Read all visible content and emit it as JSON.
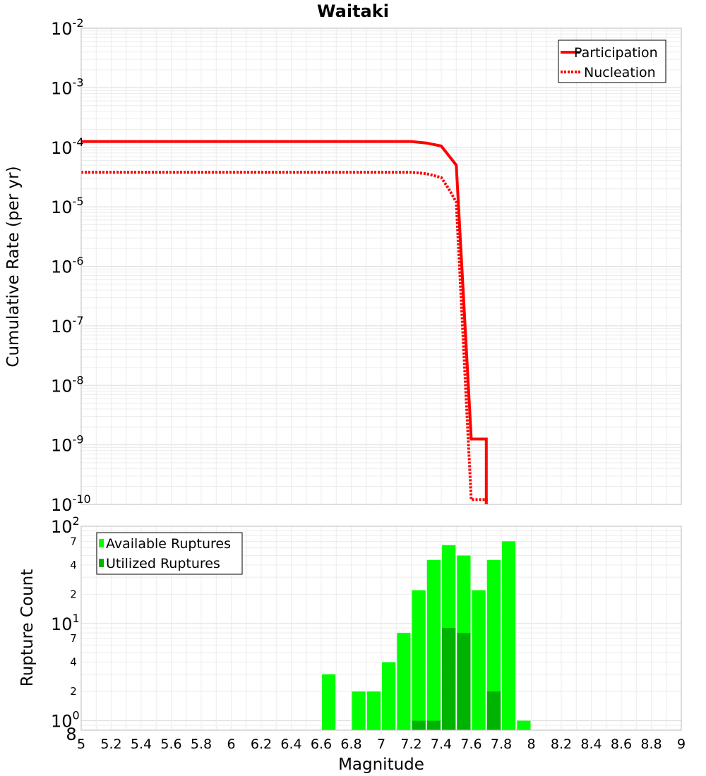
{
  "title": "Waitaki",
  "chart_data": [
    {
      "type": "line",
      "panel": "top",
      "ylabel": "Cumulative Rate (per yr)",
      "yscale": "log",
      "ylim": [
        1e-10,
        0.01
      ],
      "xlim": [
        5,
        9
      ],
      "y_decade_exponents": [
        "-2",
        "-3",
        "-4",
        "-5",
        "-6",
        "-7",
        "-8",
        "-9",
        "-10"
      ],
      "legend_position": "top-right",
      "series": [
        {
          "name": "Participation",
          "color": "#ff0000",
          "style": "solid",
          "x": [
            5.0,
            7.2,
            7.3,
            7.4,
            7.5,
            7.6,
            7.7,
            7.7
          ],
          "y": [
            0.000125,
            0.000125,
            0.000118,
            0.000105,
            5e-05,
            1.25e-09,
            1.25e-09,
            1e-10
          ]
        },
        {
          "name": "Nucleation",
          "color": "#ff0000",
          "style": "dotted",
          "x": [
            5.0,
            7.2,
            7.3,
            7.4,
            7.45,
            7.5,
            7.6,
            7.7,
            7.7
          ],
          "y": [
            3.8e-05,
            3.8e-05,
            3.6e-05,
            3.1e-05,
            2e-05,
            1.2e-05,
            1.2e-10,
            1.2e-10,
            1e-10
          ]
        }
      ]
    },
    {
      "type": "bar",
      "panel": "bottom",
      "xlabel": "Magnitude",
      "ylabel": "Rupture Count",
      "yscale": "log",
      "ylim": [
        0.8,
        100
      ],
      "x_ticks": [
        "5",
        "5.2",
        "5.4",
        "5.6",
        "5.8",
        "6",
        "6.2",
        "6.4",
        "6.6",
        "6.8",
        "7",
        "7.2",
        "7.4",
        "7.6",
        "7.8",
        "8",
        "8.2",
        "8.4",
        "8.6",
        "8.8",
        "9"
      ],
      "y_decade_labels": [
        {
          "value": 100,
          "base": "10",
          "exp": "2"
        },
        {
          "value": 10,
          "base": "10",
          "exp": "1"
        },
        {
          "value": 1,
          "base": "10",
          "exp": "0"
        }
      ],
      "y_minor_labels": [
        {
          "value": 70,
          "label": "7"
        },
        {
          "value": 40,
          "label": "4"
        },
        {
          "value": 20,
          "label": "2"
        },
        {
          "value": 7,
          "label": "7"
        },
        {
          "value": 4,
          "label": "4"
        },
        {
          "value": 2,
          "label": "2"
        },
        {
          "value": 0.8,
          "label": "8"
        }
      ],
      "legend_position": "top-left",
      "bin_width": 0.1,
      "series": [
        {
          "name": "Available Ruptures",
          "color": "#00ff00",
          "x": [
            6.65,
            6.85,
            6.95,
            7.05,
            7.15,
            7.25,
            7.35,
            7.45,
            7.55,
            7.65,
            7.75,
            7.85,
            7.95
          ],
          "values": [
            3,
            2,
            2,
            4,
            8,
            22,
            45,
            64,
            50,
            22,
            45,
            70,
            1
          ]
        },
        {
          "name": "Utilized Ruptures",
          "color": "#00b300",
          "x": [
            7.25,
            7.35,
            7.45,
            7.55,
            7.75
          ],
          "values": [
            1,
            1,
            9,
            8,
            2
          ]
        }
      ]
    }
  ]
}
